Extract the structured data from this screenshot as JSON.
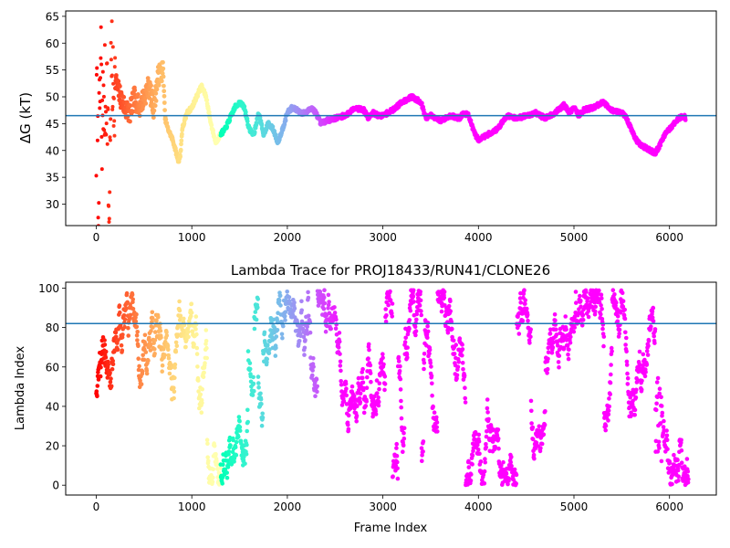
{
  "chart_data": [
    {
      "type": "scatter",
      "title": "",
      "xlabel": "",
      "ylabel": "ΔG (kT)",
      "xlim": [
        -320,
        6490
      ],
      "ylim": [
        26,
        66
      ],
      "x_ticks": [
        0,
        1000,
        2000,
        3000,
        4000,
        5000,
        6000
      ],
      "y_ticks": [
        30,
        35,
        40,
        45,
        50,
        55,
        60,
        65
      ],
      "x_tick_labels": [
        "0",
        "1000",
        "2000",
        "3000",
        "4000",
        "5000",
        "6000"
      ],
      "y_tick_labels": [
        "30",
        "35",
        "40",
        "45",
        "50",
        "55",
        "60",
        "65"
      ],
      "colormap": "rainbow (red at frame 0 → violet at late frames)",
      "reference_line": {
        "y": 46.5,
        "color": "#1f77b4"
      },
      "trace_points": [
        [
          0,
          40
        ],
        [
          10,
          60
        ],
        [
          20,
          30
        ],
        [
          30,
          42
        ],
        [
          40,
          50
        ],
        [
          50,
          58
        ],
        [
          60,
          37
        ],
        [
          70,
          55
        ],
        [
          80,
          44
        ],
        [
          90,
          51
        ],
        [
          100,
          48
        ],
        [
          110,
          54
        ],
        [
          120,
          46
        ],
        [
          130,
          28
        ],
        [
          140,
          32
        ],
        [
          150,
          52
        ],
        [
          160,
          56
        ],
        [
          180,
          50
        ],
        [
          200,
          53
        ],
        [
          250,
          50
        ],
        [
          300,
          48
        ],
        [
          350,
          47
        ],
        [
          400,
          50
        ],
        [
          450,
          48
        ],
        [
          500,
          50
        ],
        [
          550,
          52
        ],
        [
          600,
          48
        ],
        [
          650,
          54
        ],
        [
          700,
          55
        ],
        [
          720,
          46
        ],
        [
          750,
          44
        ],
        [
          800,
          42
        ],
        [
          830,
          40
        ],
        [
          860,
          38
        ],
        [
          880,
          39
        ],
        [
          900,
          44
        ],
        [
          950,
          47
        ],
        [
          1000,
          48
        ],
        [
          1050,
          50
        ],
        [
          1100,
          52
        ],
        [
          1150,
          50
        ],
        [
          1200,
          45
        ],
        [
          1250,
          41.5
        ],
        [
          1300,
          43
        ],
        [
          1350,
          44
        ],
        [
          1400,
          46
        ],
        [
          1450,
          48
        ],
        [
          1500,
          49
        ],
        [
          1550,
          48
        ],
        [
          1600,
          44
        ],
        [
          1650,
          43
        ],
        [
          1700,
          47
        ],
        [
          1750,
          43
        ],
        [
          1800,
          45
        ],
        [
          1850,
          44
        ],
        [
          1900,
          41.5
        ],
        [
          1950,
          44
        ],
        [
          2000,
          47
        ],
        [
          2050,
          48
        ],
        [
          2100,
          47.5
        ],
        [
          2150,
          47
        ],
        [
          2200,
          47
        ],
        [
          2250,
          48
        ],
        [
          2300,
          47
        ],
        [
          2350,
          45
        ],
        [
          2400,
          45.5
        ],
        [
          2500,
          46
        ],
        [
          2600,
          46.5
        ],
        [
          2650,
          47
        ],
        [
          2700,
          48
        ],
        [
          2800,
          47.5
        ],
        [
          2850,
          46
        ],
        [
          2900,
          47
        ],
        [
          2950,
          46.5
        ],
        [
          3000,
          46.5
        ],
        [
          3100,
          47.5
        ],
        [
          3200,
          49
        ],
        [
          3300,
          50
        ],
        [
          3400,
          49
        ],
        [
          3450,
          46
        ],
        [
          3500,
          46.5
        ],
        [
          3600,
          45.5
        ],
        [
          3700,
          46.5
        ],
        [
          3800,
          46
        ],
        [
          3850,
          47
        ],
        [
          3900,
          46.5
        ],
        [
          3950,
          43.5
        ],
        [
          4000,
          42
        ],
        [
          4100,
          43
        ],
        [
          4200,
          44
        ],
        [
          4300,
          46.5
        ],
        [
          4400,
          46
        ],
        [
          4500,
          46.5
        ],
        [
          4600,
          47
        ],
        [
          4700,
          46
        ],
        [
          4800,
          47
        ],
        [
          4900,
          48.5
        ],
        [
          4950,
          47
        ],
        [
          5000,
          48
        ],
        [
          5050,
          46.5
        ],
        [
          5100,
          47.5
        ],
        [
          5200,
          48
        ],
        [
          5300,
          49
        ],
        [
          5400,
          47.5
        ],
        [
          5500,
          47
        ],
        [
          5550,
          46
        ],
        [
          5600,
          44
        ],
        [
          5650,
          42
        ],
        [
          5700,
          41
        ],
        [
          5800,
          40
        ],
        [
          5850,
          39.5
        ],
        [
          5900,
          41
        ],
        [
          5950,
          43
        ],
        [
          6000,
          44
        ],
        [
          6050,
          45
        ],
        [
          6100,
          46
        ],
        [
          6150,
          46.5
        ],
        [
          6170,
          46
        ]
      ]
    },
    {
      "type": "scatter",
      "title": "Lambda Trace for PROJ18433/RUN41/CLONE26",
      "xlabel": "Frame Index",
      "ylabel": "Lambda Index",
      "xlim": [
        -320,
        6490
      ],
      "ylim": [
        -5,
        103
      ],
      "x_ticks": [
        0,
        1000,
        2000,
        3000,
        4000,
        5000,
        6000
      ],
      "y_ticks": [
        0,
        20,
        40,
        60,
        80,
        100
      ],
      "x_tick_labels": [
        "0",
        "1000",
        "2000",
        "3000",
        "4000",
        "5000",
        "6000"
      ],
      "y_tick_labels": [
        "0",
        "20",
        "40",
        "60",
        "80",
        "100"
      ],
      "colormap": "rainbow (red at frame 0 → violet at late frames)",
      "reference_line": {
        "y": 82,
        "color": "#1f77b4"
      },
      "frame_range": [
        0,
        6200
      ],
      "lambda_range": [
        0,
        99
      ]
    }
  ]
}
